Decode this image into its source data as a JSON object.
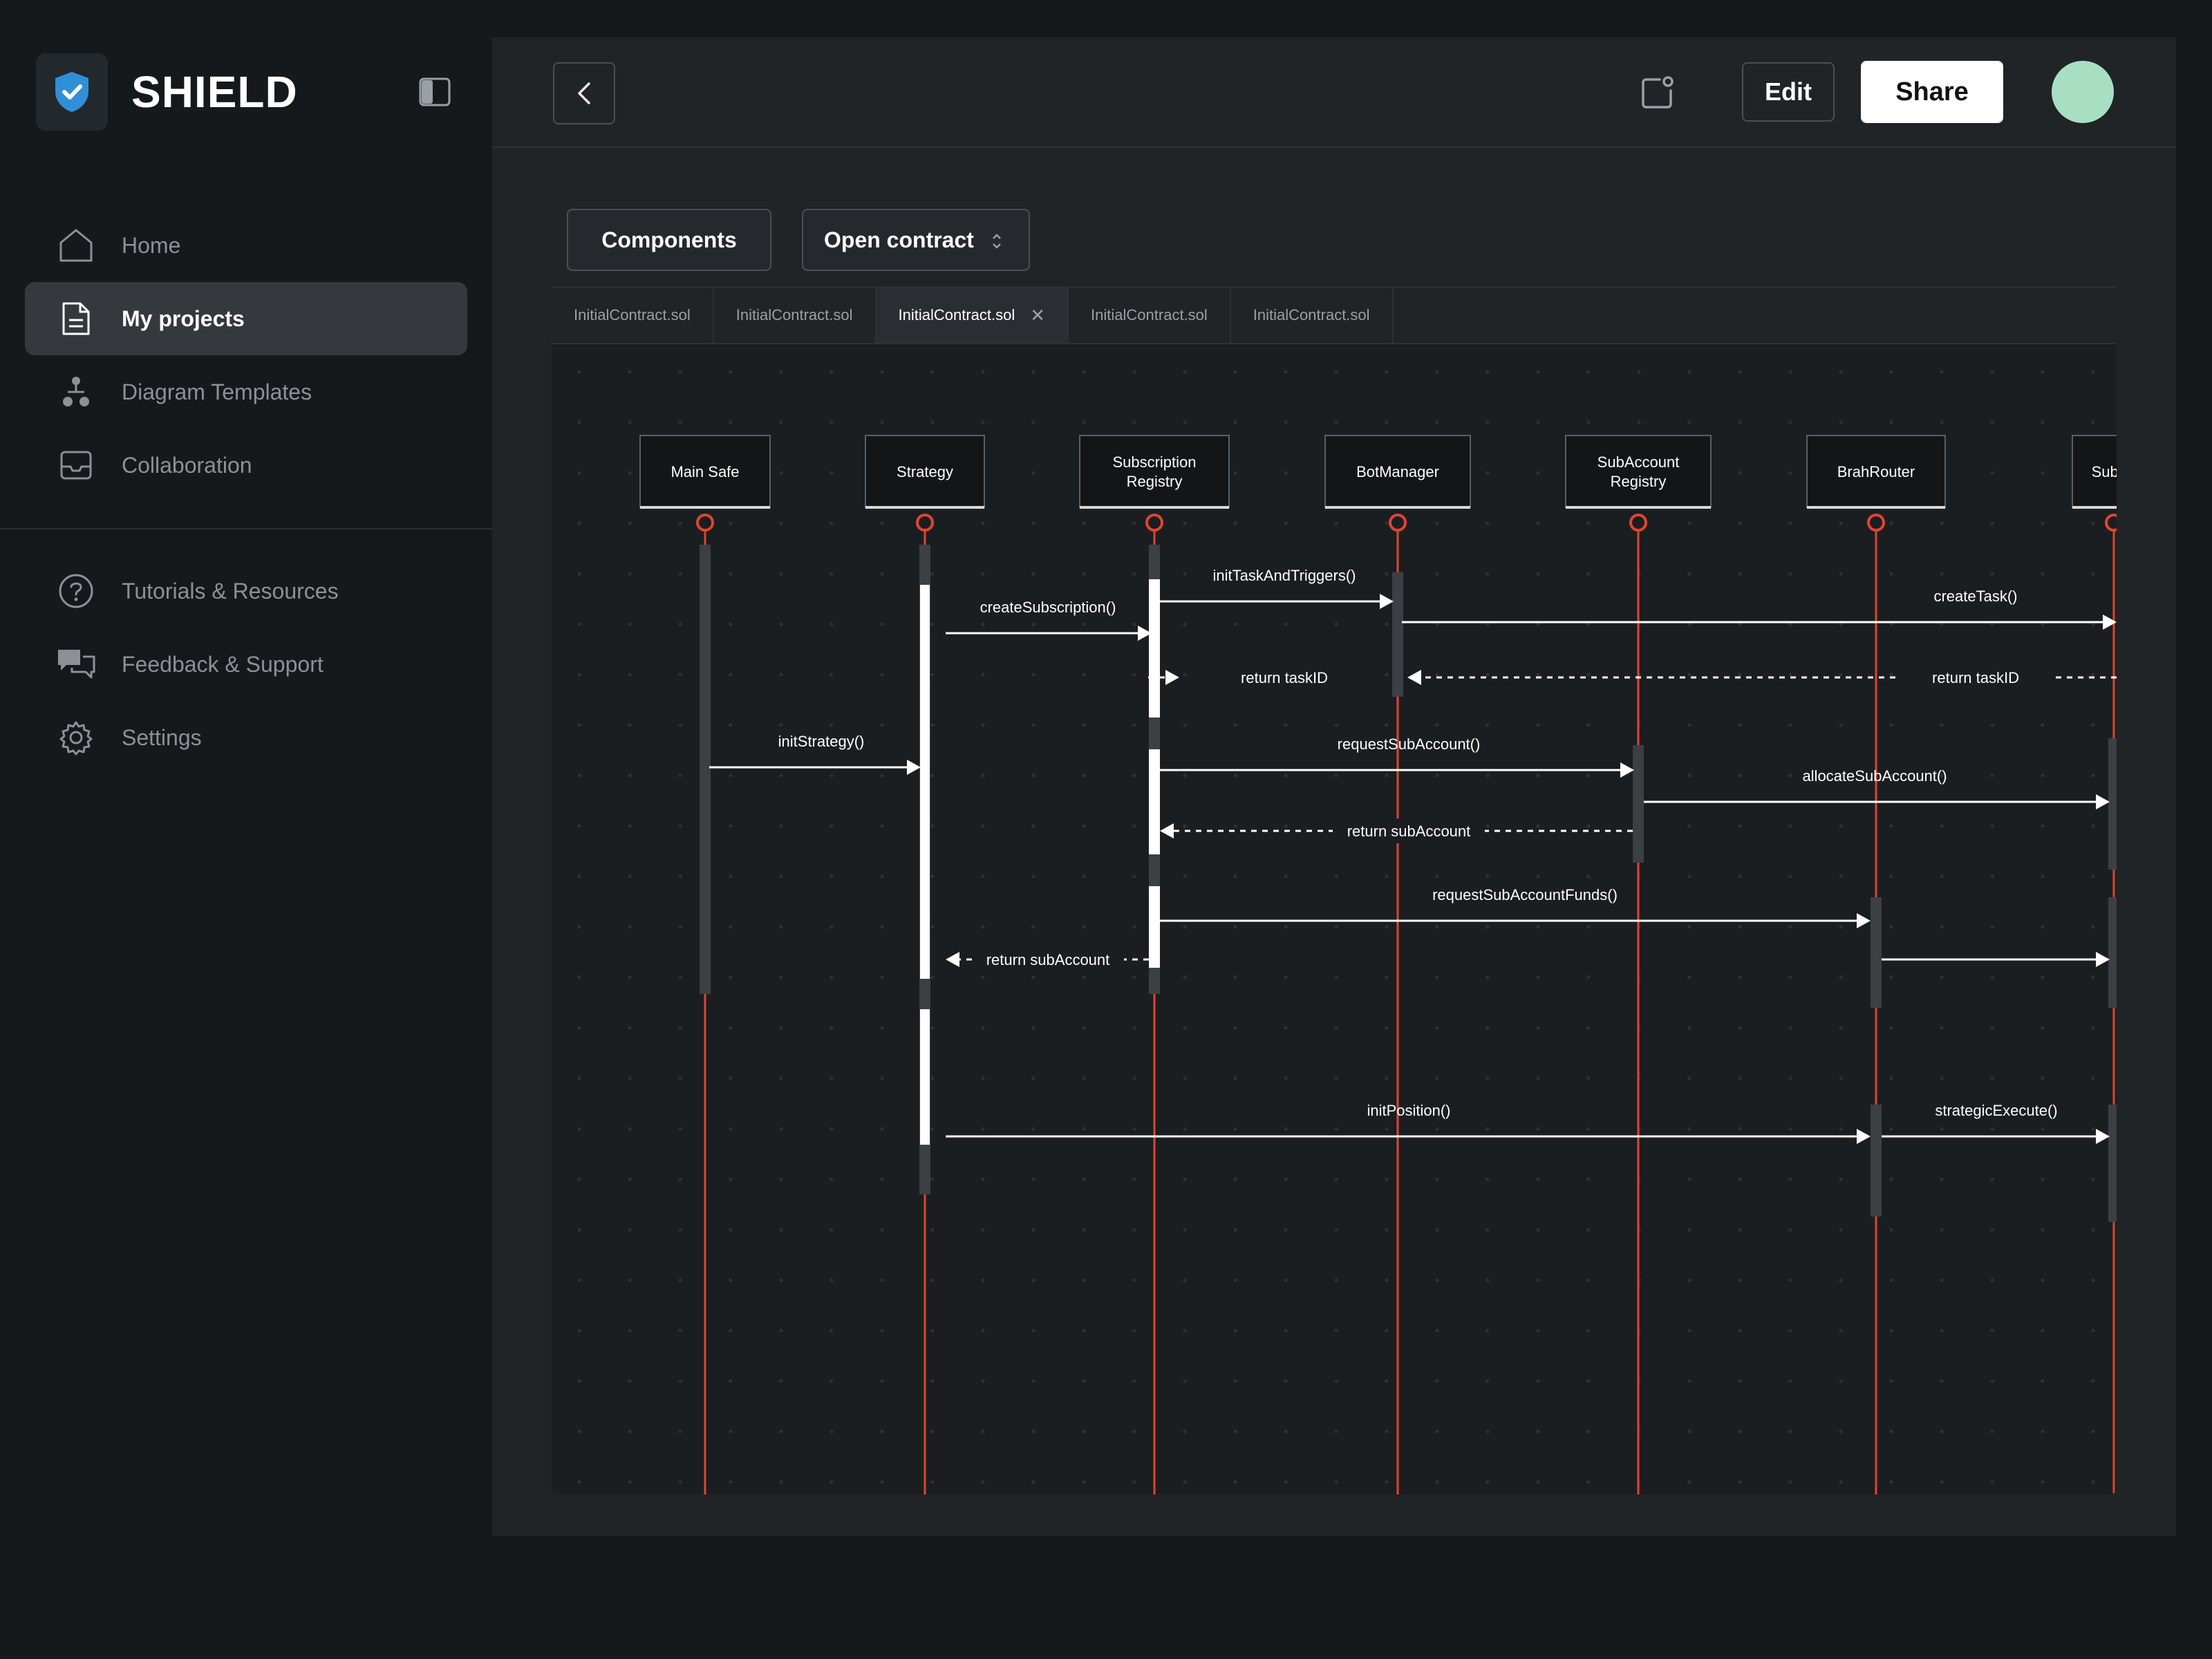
{
  "brand": {
    "name": "SHIELD"
  },
  "nav_main": [
    {
      "label": "Home",
      "icon": "home-icon",
      "active": false
    },
    {
      "label": "My projects",
      "icon": "document-icon",
      "active": true
    },
    {
      "label": "Diagram Templates",
      "icon": "hierarchy-icon",
      "active": false
    },
    {
      "label": "Collaboration",
      "icon": "inbox-icon",
      "active": false
    }
  ],
  "nav_sub": [
    {
      "label": "Tutorials & Resources",
      "icon": "help-icon"
    },
    {
      "label": "Feedback & Support",
      "icon": "chat-icon"
    },
    {
      "label": "Settings",
      "icon": "gear-icon"
    }
  ],
  "header": {
    "edit_label": "Edit",
    "share_label": "Share"
  },
  "toolbar": {
    "components_label": "Components",
    "contract_label": "Open contract"
  },
  "tabs": [
    {
      "label": "InitialContract.sol",
      "active": false
    },
    {
      "label": "InitialContract.sol",
      "active": false
    },
    {
      "label": "InitialContract.sol",
      "active": true
    },
    {
      "label": "InitialContract.sol",
      "active": false
    },
    {
      "label": "InitialContract.sol",
      "active": false
    }
  ],
  "colors": {
    "lifeline": "#e0452e",
    "accent_blue": "#2f8fd8",
    "avatar": "#a8dfc3"
  },
  "diagram": {
    "participants": [
      {
        "id": "main",
        "lines": [
          "Main Safe"
        ]
      },
      {
        "id": "strategy",
        "lines": [
          "Strategy"
        ]
      },
      {
        "id": "subreg",
        "lines": [
          "Subscription",
          "Registry"
        ]
      },
      {
        "id": "bot",
        "lines": [
          "BotManager"
        ]
      },
      {
        "id": "subacc",
        "lines": [
          "SubAccount",
          "Registry"
        ]
      },
      {
        "id": "router",
        "lines": [
          "BrahRouter"
        ]
      },
      {
        "id": "subac2",
        "lines": [
          "SubAc"
        ]
      }
    ],
    "messages": [
      {
        "label": "initTaskAndTriggers()",
        "dashed": false
      },
      {
        "label": "createTask()",
        "dashed": false
      },
      {
        "label": "createSubscription()",
        "dashed": false
      },
      {
        "label": "return taskID",
        "dashed": true
      },
      {
        "label": "return taskID",
        "dashed": true
      },
      {
        "label": "initStrategy()",
        "dashed": false
      },
      {
        "label": "requestSubAccount()",
        "dashed": false
      },
      {
        "label": "allocateSubAccount()",
        "dashed": false
      },
      {
        "label": "return subAccount",
        "dashed": true
      },
      {
        "label": "requestSubAccountFunds()",
        "dashed": false
      },
      {
        "label": "",
        "dashed": false
      },
      {
        "label": "return subAccount",
        "dashed": true
      },
      {
        "label": "initPosition()",
        "dashed": false
      },
      {
        "label": "strategicExecute()",
        "dashed": false
      }
    ]
  }
}
